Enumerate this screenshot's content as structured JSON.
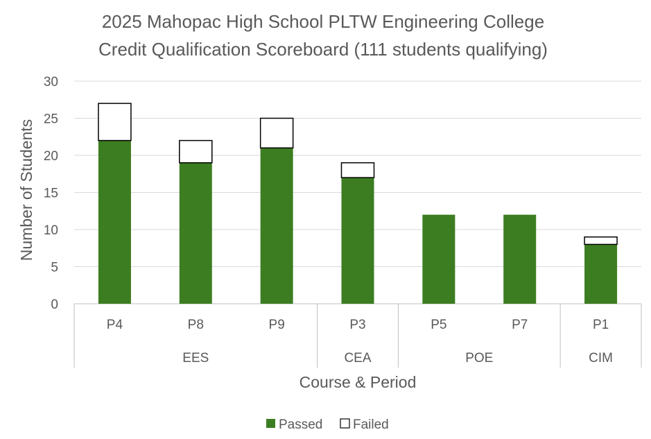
{
  "chart_data": {
    "type": "bar",
    "stacked": true,
    "title": [
      "2025 Mahopac High School PLTW Engineering College",
      "Credit Qualification Scoreboard (111 students qualifying)"
    ],
    "xlabel": "Course & Period",
    "ylabel": "Number of Students",
    "ylim": [
      0,
      30
    ],
    "yticks": [
      0,
      5,
      10,
      15,
      20,
      25,
      30
    ],
    "grid": true,
    "legend_position": "bottom",
    "categories": [
      "P4",
      "P8",
      "P9",
      "P3",
      "P5",
      "P7",
      "P1"
    ],
    "groups": [
      {
        "label": "EES",
        "categories": [
          "P4",
          "P8",
          "P9"
        ]
      },
      {
        "label": "CEA",
        "categories": [
          "P3"
        ]
      },
      {
        "label": "POE",
        "categories": [
          "P5",
          "P7"
        ]
      },
      {
        "label": "CIM",
        "categories": [
          "P1"
        ]
      }
    ],
    "series": [
      {
        "name": "Passed",
        "values": [
          22,
          19,
          21,
          17,
          12,
          12,
          8
        ],
        "color": "#3C7D22"
      },
      {
        "name": "Failed",
        "values": [
          5,
          3,
          4,
          2,
          0,
          0,
          1
        ],
        "color": "#FFFFFF"
      }
    ]
  },
  "colors": {
    "text": "#595959",
    "grid": "#D9D9D9",
    "axis": "#BFBFBF",
    "bar_outline": "#000000"
  }
}
